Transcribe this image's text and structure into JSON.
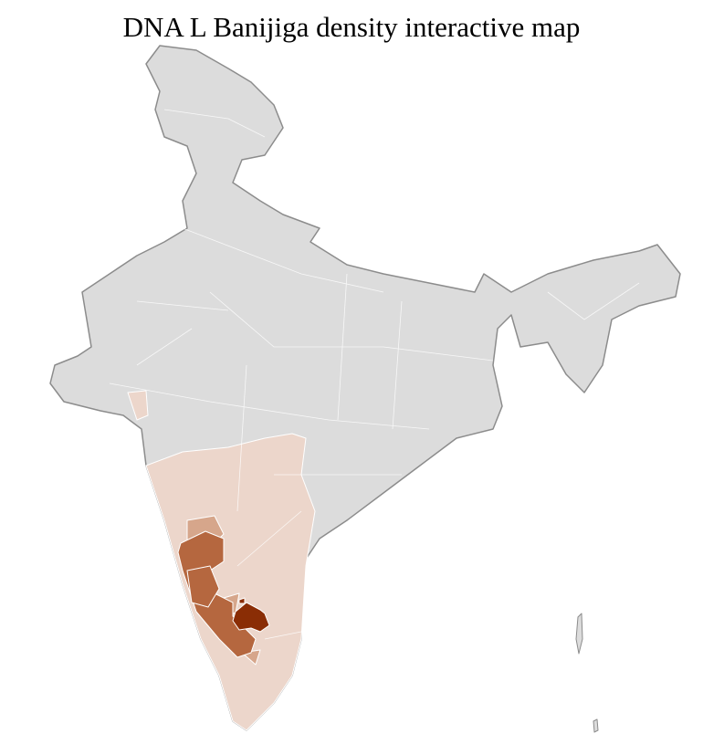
{
  "title": "DNA L Banijiga density interactive map",
  "colors": {
    "no_data": "#dcdcdc",
    "border": "#8c8c8c",
    "district_border": "#ffffff",
    "density_low": "#ecd6cb",
    "density_medium": "#d6a68b",
    "density_high": "#b5673f",
    "density_highest": "#8a2d05"
  }
}
